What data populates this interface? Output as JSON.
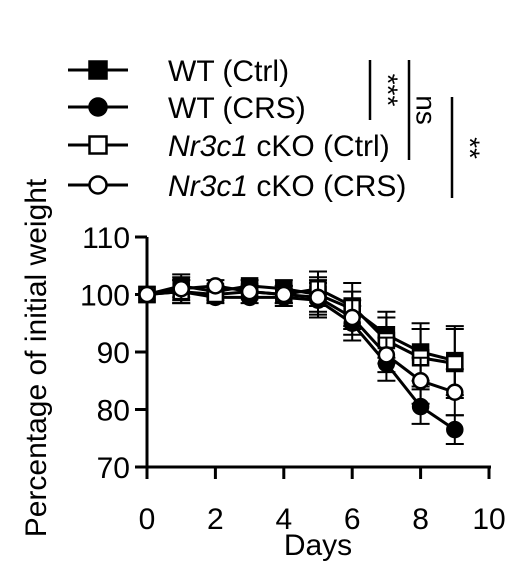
{
  "chart_data": {
    "type": "line",
    "xlabel": "Days",
    "ylabel": "Percentage of initial weight",
    "xlim": [
      0,
      10
    ],
    "ylim": [
      70,
      110
    ],
    "xticks": [
      "0",
      "2",
      "4",
      "6",
      "8",
      "10"
    ],
    "yticks": [
      "70",
      "80",
      "90",
      "100",
      "110"
    ],
    "grid": false,
    "legend_position": "top-left",
    "series": [
      {
        "name_parts": [
          {
            "text": "WT (Ctrl)",
            "italic": false
          }
        ],
        "marker": "filled-square",
        "color": "#000000",
        "x": [
          0,
          1,
          2,
          3,
          4,
          5,
          6,
          7,
          8,
          9
        ],
        "y": [
          100,
          101.5,
          100.5,
          101.5,
          101,
          100,
          97.5,
          93,
          90,
          88.5
        ],
        "err": [
          0,
          2,
          1,
          1,
          1.5,
          3,
          3,
          4,
          5,
          6
        ]
      },
      {
        "name_parts": [
          {
            "text": "WT (CRS)",
            "italic": false
          }
        ],
        "marker": "filled-circle",
        "color": "#000000",
        "x": [
          0,
          1,
          2,
          3,
          4,
          5,
          6,
          7,
          8,
          9
        ],
        "y": [
          100,
          100.5,
          99.5,
          99.5,
          99.5,
          99,
          95,
          88,
          80.5,
          76.5
        ],
        "err": [
          0,
          2,
          1,
          1,
          1.5,
          3,
          3,
          3,
          3,
          2.5
        ]
      },
      {
        "name_parts": [
          {
            "text": "Nr3c1",
            "italic": true
          },
          {
            "text": " cKO (Ctrl)",
            "italic": false
          }
        ],
        "marker": "open-square",
        "color": "#000000",
        "x": [
          0,
          1,
          2,
          3,
          4,
          5,
          6,
          7,
          8,
          9
        ],
        "y": [
          100,
          100.5,
          100,
          100.5,
          100,
          101,
          98,
          92,
          89,
          88
        ],
        "err": [
          0,
          2,
          1,
          1,
          1.5,
          3,
          4,
          4,
          5,
          6
        ]
      },
      {
        "name_parts": [
          {
            "text": "Nr3c1",
            "italic": true
          },
          {
            "text": " cKO (CRS)",
            "italic": false
          }
        ],
        "marker": "open-circle",
        "color": "#000000",
        "x": [
          0,
          1,
          2,
          3,
          4,
          5,
          6,
          7,
          8,
          9
        ],
        "y": [
          100,
          101,
          101.5,
          100.5,
          100,
          99.5,
          96,
          89.5,
          85,
          83
        ],
        "err": [
          0,
          2,
          1,
          1,
          1.5,
          3,
          3,
          3,
          4,
          4
        ]
      }
    ],
    "annotations": [
      {
        "text": "***",
        "between": [
          0,
          1
        ]
      },
      {
        "text": "ns",
        "between": [
          0,
          2
        ]
      },
      {
        "text": "**",
        "between": [
          1,
          3
        ]
      }
    ]
  }
}
